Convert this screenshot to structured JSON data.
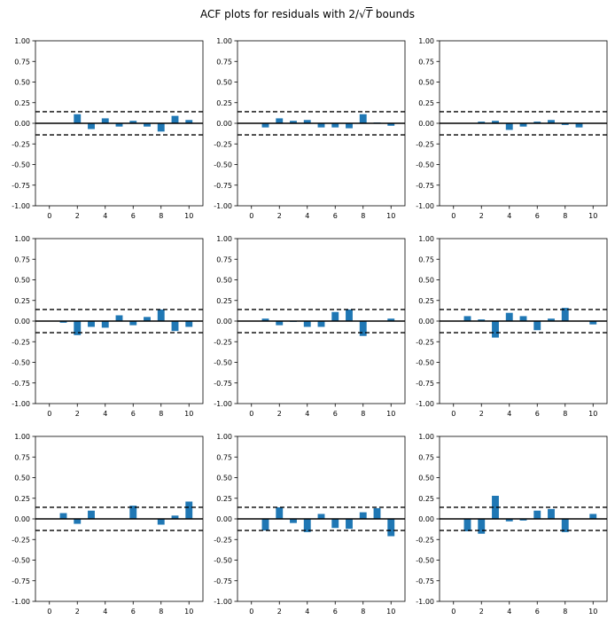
{
  "figure": {
    "title_prefix": "ACF plots for residuals with 2/",
    "title_radicand": "T",
    "title_suffix": " bounds",
    "bar_color": "#1f77b4",
    "bound_color": "#000000"
  },
  "chart_data": [
    {
      "type": "bar",
      "x": [
        1,
        2,
        3,
        4,
        5,
        6,
        7,
        8,
        9,
        10
      ],
      "values": [
        0.0,
        0.11,
        -0.07,
        0.06,
        -0.04,
        0.03,
        -0.04,
        -0.1,
        0.09,
        0.04
      ],
      "bounds": [
        0.14,
        -0.14
      ],
      "ylim": [
        -1.0,
        1.0
      ],
      "xticks": [
        0,
        2,
        4,
        6,
        8,
        10
      ],
      "yticks": [
        "-1.00",
        "-0.75",
        "-0.50",
        "-0.25",
        "0.00",
        "0.25",
        "0.50",
        "0.75",
        "1.00"
      ]
    },
    {
      "type": "bar",
      "x": [
        1,
        2,
        3,
        4,
        5,
        6,
        7,
        8,
        9,
        10
      ],
      "values": [
        -0.05,
        0.06,
        0.03,
        0.04,
        -0.05,
        -0.05,
        -0.06,
        0.11,
        0.01,
        -0.03
      ],
      "bounds": [
        0.14,
        -0.14
      ],
      "ylim": [
        -1.0,
        1.0
      ],
      "xticks": [
        0,
        2,
        4,
        6,
        8,
        10
      ],
      "yticks": [
        "-1.00",
        "-0.75",
        "-0.50",
        "-0.25",
        "0.00",
        "0.25",
        "0.50",
        "0.75",
        "1.00"
      ]
    },
    {
      "type": "bar",
      "x": [
        1,
        2,
        3,
        4,
        5,
        6,
        7,
        8,
        9,
        10
      ],
      "values": [
        0.0,
        0.02,
        0.03,
        -0.08,
        -0.04,
        0.02,
        0.04,
        -0.02,
        -0.05,
        0.0
      ],
      "bounds": [
        0.14,
        -0.14
      ],
      "ylim": [
        -1.0,
        1.0
      ],
      "xticks": [
        0,
        2,
        4,
        6,
        8,
        10
      ],
      "yticks": [
        "-1.00",
        "-0.75",
        "-0.50",
        "-0.25",
        "0.00",
        "0.25",
        "0.50",
        "0.75",
        "1.00"
      ]
    },
    {
      "type": "bar",
      "x": [
        1,
        2,
        3,
        4,
        5,
        6,
        7,
        8,
        9,
        10
      ],
      "values": [
        -0.02,
        -0.17,
        -0.07,
        -0.08,
        0.07,
        -0.05,
        0.05,
        0.14,
        -0.12,
        -0.07
      ],
      "bounds": [
        0.14,
        -0.14
      ],
      "ylim": [
        -1.0,
        1.0
      ],
      "xticks": [
        0,
        2,
        4,
        6,
        8,
        10
      ],
      "yticks": [
        "-1.00",
        "-0.75",
        "-0.50",
        "-0.25",
        "0.00",
        "0.25",
        "0.50",
        "0.75",
        "1.00"
      ]
    },
    {
      "type": "bar",
      "x": [
        1,
        2,
        3,
        4,
        5,
        6,
        7,
        8,
        9,
        10
      ],
      "values": [
        0.03,
        -0.05,
        -0.01,
        -0.07,
        -0.07,
        0.11,
        0.14,
        -0.18,
        0.0,
        0.03
      ],
      "bounds": [
        0.14,
        -0.14
      ],
      "ylim": [
        -1.0,
        1.0
      ],
      "xticks": [
        0,
        2,
        4,
        6,
        8,
        10
      ],
      "yticks": [
        "-1.00",
        "-0.75",
        "-0.50",
        "-0.25",
        "0.00",
        "0.25",
        "0.50",
        "0.75",
        "1.00"
      ]
    },
    {
      "type": "bar",
      "x": [
        1,
        2,
        3,
        4,
        5,
        6,
        7,
        8,
        9,
        10
      ],
      "values": [
        0.06,
        0.02,
        -0.2,
        0.1,
        0.06,
        -0.11,
        0.03,
        0.16,
        0.0,
        -0.04
      ],
      "bounds": [
        0.14,
        -0.14
      ],
      "ylim": [
        -1.0,
        1.0
      ],
      "xticks": [
        0,
        2,
        4,
        6,
        8,
        10
      ],
      "yticks": [
        "-1.00",
        "-0.75",
        "-0.50",
        "-0.25",
        "0.00",
        "0.25",
        "0.50",
        "0.75",
        "1.00"
      ]
    },
    {
      "type": "bar",
      "x": [
        1,
        2,
        3,
        4,
        5,
        6,
        7,
        8,
        9,
        10
      ],
      "values": [
        0.07,
        -0.06,
        0.1,
        0.0,
        0.0,
        0.16,
        0.0,
        -0.07,
        0.04,
        0.21
      ],
      "bounds": [
        0.14,
        -0.14
      ],
      "ylim": [
        -1.0,
        1.0
      ],
      "xticks": [
        0,
        2,
        4,
        6,
        8,
        10
      ],
      "yticks": [
        "-1.00",
        "-0.75",
        "-0.50",
        "-0.25",
        "0.00",
        "0.25",
        "0.50",
        "0.75",
        "1.00"
      ]
    },
    {
      "type": "bar",
      "x": [
        1,
        2,
        3,
        4,
        5,
        6,
        7,
        8,
        9,
        10
      ],
      "values": [
        -0.14,
        0.14,
        -0.05,
        -0.16,
        0.06,
        -0.11,
        -0.12,
        0.08,
        0.13,
        -0.21
      ],
      "bounds": [
        0.14,
        -0.14
      ],
      "ylim": [
        -1.0,
        1.0
      ],
      "xticks": [
        0,
        2,
        4,
        6,
        8,
        10
      ],
      "yticks": [
        "-1.00",
        "-0.75",
        "-0.50",
        "-0.25",
        "0.00",
        "0.25",
        "0.50",
        "0.75",
        "1.00"
      ]
    },
    {
      "type": "bar",
      "x": [
        1,
        2,
        3,
        4,
        5,
        6,
        7,
        8,
        9,
        10
      ],
      "values": [
        -0.15,
        -0.18,
        0.28,
        -0.03,
        -0.02,
        0.1,
        0.12,
        -0.16,
        0.0,
        0.06
      ],
      "bounds": [
        0.14,
        -0.14
      ],
      "ylim": [
        -1.0,
        1.0
      ],
      "xticks": [
        0,
        2,
        4,
        6,
        8,
        10
      ],
      "yticks": [
        "-1.00",
        "-0.75",
        "-0.50",
        "-0.25",
        "0.00",
        "0.25",
        "0.50",
        "0.75",
        "1.00"
      ]
    }
  ]
}
